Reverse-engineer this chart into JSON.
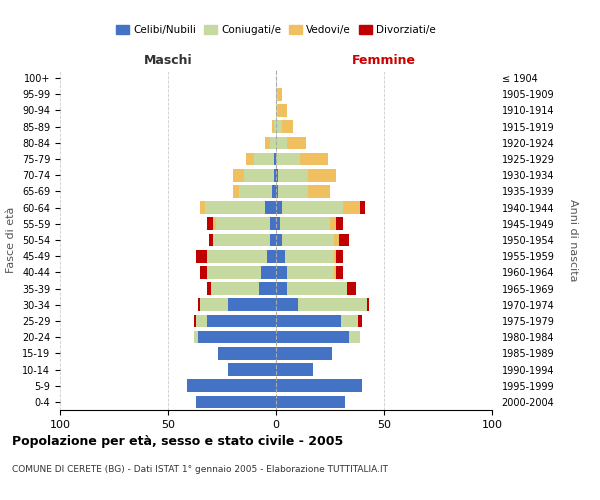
{
  "age_groups": [
    "0-4",
    "5-9",
    "10-14",
    "15-19",
    "20-24",
    "25-29",
    "30-34",
    "35-39",
    "40-44",
    "45-49",
    "50-54",
    "55-59",
    "60-64",
    "65-69",
    "70-74",
    "75-79",
    "80-84",
    "85-89",
    "90-94",
    "95-99",
    "100+"
  ],
  "birth_years": [
    "2000-2004",
    "1995-1999",
    "1990-1994",
    "1985-1989",
    "1980-1984",
    "1975-1979",
    "1970-1974",
    "1965-1969",
    "1960-1964",
    "1955-1959",
    "1950-1954",
    "1945-1949",
    "1940-1944",
    "1935-1939",
    "1930-1934",
    "1925-1929",
    "1920-1924",
    "1915-1919",
    "1910-1914",
    "1905-1909",
    "≤ 1904"
  ],
  "male": {
    "celibi": [
      37,
      41,
      22,
      27,
      36,
      32,
      22,
      8,
      7,
      4,
      3,
      3,
      5,
      2,
      1,
      1,
      0,
      0,
      0,
      0,
      0
    ],
    "coniugati": [
      0,
      0,
      0,
      0,
      2,
      5,
      13,
      22,
      25,
      28,
      26,
      25,
      28,
      15,
      14,
      9,
      3,
      1,
      0,
      0,
      0
    ],
    "vedovi": [
      0,
      0,
      0,
      0,
      0,
      0,
      0,
      0,
      0,
      0,
      0,
      1,
      2,
      3,
      5,
      4,
      2,
      1,
      0,
      0,
      0
    ],
    "divorziati": [
      0,
      0,
      0,
      0,
      0,
      1,
      1,
      2,
      3,
      5,
      2,
      3,
      0,
      0,
      0,
      0,
      0,
      0,
      0,
      0,
      0
    ]
  },
  "female": {
    "nubili": [
      32,
      40,
      17,
      26,
      34,
      30,
      10,
      5,
      5,
      4,
      3,
      2,
      3,
      1,
      1,
      0,
      0,
      0,
      0,
      0,
      0
    ],
    "coniugate": [
      0,
      0,
      0,
      0,
      5,
      8,
      32,
      28,
      22,
      23,
      24,
      23,
      28,
      14,
      14,
      11,
      5,
      3,
      1,
      1,
      0
    ],
    "vedove": [
      0,
      0,
      0,
      0,
      0,
      0,
      0,
      0,
      1,
      1,
      2,
      3,
      8,
      10,
      13,
      13,
      9,
      5,
      4,
      2,
      0
    ],
    "divorziate": [
      0,
      0,
      0,
      0,
      0,
      2,
      1,
      4,
      3,
      3,
      5,
      3,
      2,
      0,
      0,
      0,
      0,
      0,
      0,
      0,
      0
    ]
  },
  "color_celibi": "#4472c4",
  "color_coniugati": "#c5d9a0",
  "color_vedovi": "#f0c060",
  "color_divorziati": "#c00000",
  "xlim": 100,
  "title": "Popolazione per età, sesso e stato civile - 2005",
  "subtitle": "COMUNE DI CERETE (BG) - Dati ISTAT 1° gennaio 2005 - Elaborazione TUTTITALIA.IT",
  "ylabel_left": "Fasce di età",
  "ylabel_right": "Anni di nascita",
  "xlabel_left": "Maschi",
  "xlabel_right": "Femmine"
}
